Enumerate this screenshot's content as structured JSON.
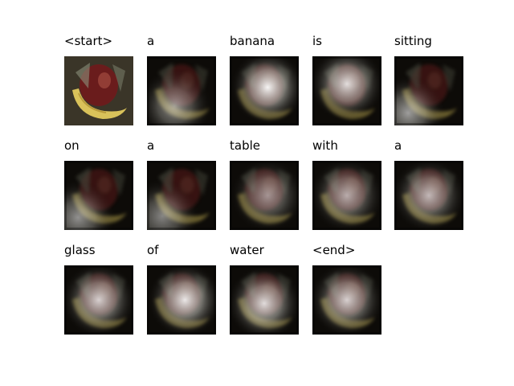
{
  "figure": {
    "words": [
      "<start>",
      "a",
      "banana",
      "is",
      "sitting",
      "on",
      "a",
      "table",
      "with",
      "a",
      "glass",
      "of",
      "water",
      "<end>"
    ],
    "columns": 5,
    "frames": [
      {
        "word": "<start>",
        "type": "original"
      },
      {
        "word": "a",
        "type": "attention",
        "hotspot": [
          0.4,
          0.72
        ],
        "brightness": 0.55
      },
      {
        "word": "banana",
        "type": "attention",
        "hotspot": [
          0.55,
          0.45
        ],
        "brightness": 0.95
      },
      {
        "word": "is",
        "type": "attention",
        "hotspot": [
          0.5,
          0.4
        ],
        "brightness": 0.85
      },
      {
        "word": "sitting",
        "type": "attention",
        "hotspot": [
          0.2,
          0.82
        ],
        "brightness": 0.6
      },
      {
        "word": "on",
        "type": "attention",
        "hotspot": [
          0.2,
          0.82
        ],
        "brightness": 0.55
      },
      {
        "word": "a",
        "type": "attention",
        "hotspot": [
          0.22,
          0.8
        ],
        "brightness": 0.5
      },
      {
        "word": "table",
        "type": "attention",
        "hotspot": [
          0.55,
          0.5
        ],
        "brightness": 0.55
      },
      {
        "word": "with",
        "type": "attention",
        "hotspot": [
          0.5,
          0.5
        ],
        "brightness": 0.65
      },
      {
        "word": "a",
        "type": "attention",
        "hotspot": [
          0.5,
          0.5
        ],
        "brightness": 0.7
      },
      {
        "word": "glass",
        "type": "attention",
        "hotspot": [
          0.5,
          0.5
        ],
        "brightness": 0.8
      },
      {
        "word": "of",
        "type": "attention",
        "hotspot": [
          0.55,
          0.5
        ],
        "brightness": 0.9
      },
      {
        "word": "water",
        "type": "attention",
        "hotspot": [
          0.5,
          0.55
        ],
        "brightness": 0.85
      },
      {
        "word": "<end>",
        "type": "attention",
        "hotspot": [
          0.5,
          0.5
        ],
        "brightness": 0.8
      }
    ],
    "colors": {
      "background": "#ffffff",
      "banana": "#d9c25a",
      "apple": "#6b1e1e",
      "dark": "#0d0b08"
    }
  }
}
